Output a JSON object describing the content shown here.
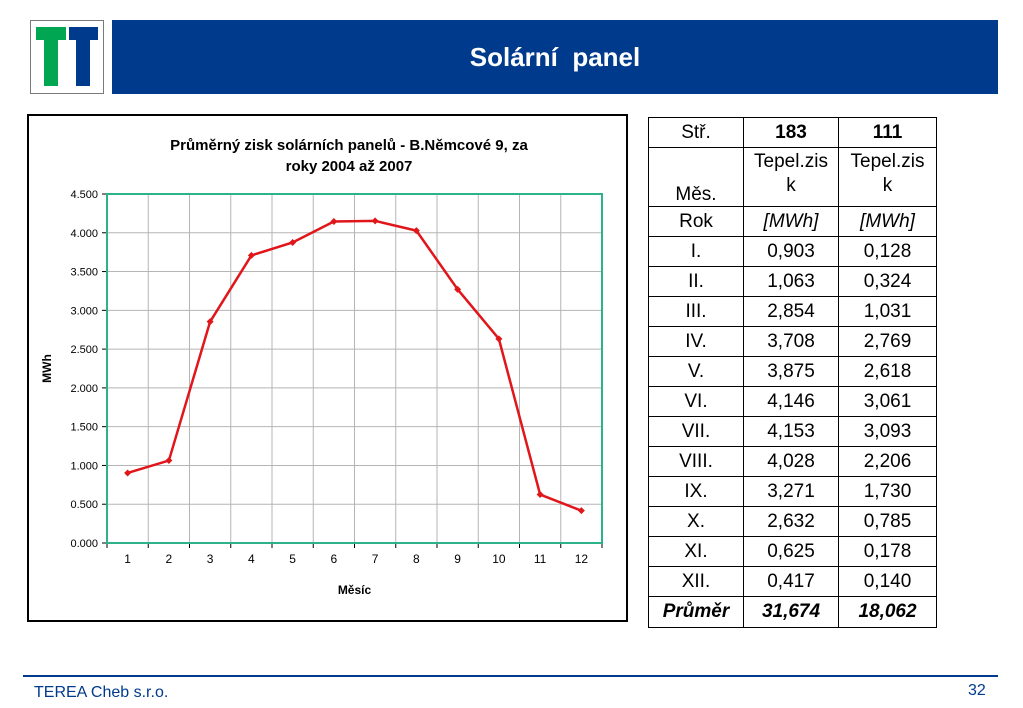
{
  "header": {
    "title": "Solární  panel"
  },
  "colors": {
    "header_bar": "#003a8c",
    "logo_green": "#00a651",
    "logo_blue": "#003a8c",
    "line": "#e0161b",
    "plot_border": "#2db38a"
  },
  "chart_data": {
    "type": "line",
    "title": "Průměrný zisk solárních panelů - B.Němcové 9, za roky 2004 až 2007",
    "title_lines": [
      "Průměrný zisk solárních panelů - B.Němcové 9, za",
      "roky 2004 až 2007"
    ],
    "xlabel": "Měsíc",
    "ylabel": "MWh",
    "x": [
      1,
      2,
      3,
      4,
      5,
      6,
      7,
      8,
      9,
      10,
      11,
      12
    ],
    "x_tick_labels": [
      "1",
      "2",
      "3",
      "4",
      "5",
      "6",
      "7",
      "8",
      "9",
      "10",
      "11",
      "12"
    ],
    "y_tick_labels": [
      "0.000",
      "0.500",
      "1.000",
      "1.500",
      "2.000",
      "2.500",
      "3.000",
      "3.500",
      "4.000",
      "4.500"
    ],
    "ylim": [
      0,
      4.5
    ],
    "series": [
      {
        "values": [
          0.903,
          1.063,
          2.854,
          3.708,
          3.875,
          4.146,
          4.153,
          4.028,
          3.271,
          2.632,
          0.625,
          0.417
        ]
      }
    ],
    "grid": true,
    "legend": "none"
  },
  "table": {
    "header": [
      "Stř.",
      "183",
      "111"
    ],
    "subheader": [
      "Měs.",
      "Tepel.zis\nk",
      "Tepel.zis\nk"
    ],
    "units": [
      "Rok",
      "[MWh]",
      "[MWh]"
    ],
    "rows": [
      [
        "I.",
        "0,903",
        "0,128"
      ],
      [
        "II.",
        "1,063",
        "0,324"
      ],
      [
        "III.",
        "2,854",
        "1,031"
      ],
      [
        "IV.",
        "3,708",
        "2,769"
      ],
      [
        "V.",
        "3,875",
        "2,618"
      ],
      [
        "VI.",
        "4,146",
        "3,061"
      ],
      [
        "VII.",
        "4,153",
        "3,093"
      ],
      [
        "VIII.",
        "4,028",
        "2,206"
      ],
      [
        "IX.",
        "3,271",
        "1,730"
      ],
      [
        "X.",
        "2,632",
        "0,785"
      ],
      [
        "XI.",
        "0,625",
        "0,178"
      ],
      [
        "XII.",
        "0,417",
        "0,140"
      ]
    ],
    "total": [
      "Průměr",
      "31,674",
      "18,062"
    ]
  },
  "footer": {
    "company": "TEREA Cheb s.r.o.",
    "page_number": "32"
  }
}
